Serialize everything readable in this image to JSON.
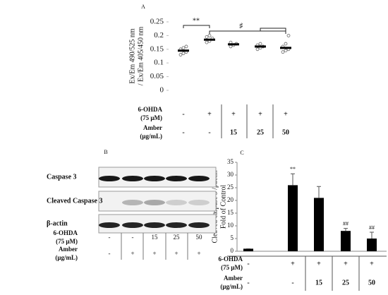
{
  "chart_data": [
    {
      "type": "dotplot",
      "panel": "A",
      "ylabel": [
        "Ex/Em 490/525 nm",
        "/ Ex/Em 405/450 nm"
      ],
      "ylim": [
        0,
        0.25
      ],
      "yticks": [
        0,
        0.05,
        0.1,
        0.15,
        0.2,
        0.25
      ],
      "means": [
        0.145,
        0.185,
        0.168,
        0.16,
        0.155
      ],
      "points": [
        [
          0.13,
          0.135,
          0.14,
          0.15,
          0.155,
          0.16
        ],
        [
          0.175,
          0.18,
          0.19,
          0.195,
          0.2
        ],
        [
          0.16,
          0.165,
          0.17,
          0.175
        ],
        [
          0.15,
          0.155,
          0.16,
          0.165,
          0.17
        ],
        [
          0.14,
          0.145,
          0.15,
          0.16,
          0.17,
          0.2
        ]
      ],
      "color": "#000000",
      "annotations": [
        "**",
        "♯"
      ],
      "rows": [
        {
          "label": [
            "6-OHDA",
            "(75 μM)"
          ],
          "cells": [
            "-",
            "+",
            "+",
            "+",
            "+"
          ]
        },
        {
          "label": [
            "Amber",
            "(μg/mL)"
          ],
          "cells": [
            "-",
            "-",
            "15",
            "25",
            "50"
          ]
        }
      ]
    },
    {
      "type": "bar",
      "panel": "C",
      "ylabel": [
        "Cleaved caspase 3 /βactin",
        "Fold of Control"
      ],
      "ylim": [
        0,
        35
      ],
      "yticks": [
        0,
        5,
        10,
        15,
        20,
        25,
        30,
        35
      ],
      "values": [
        1,
        26,
        21,
        8,
        5
      ],
      "errors": [
        0,
        4.5,
        4.5,
        1,
        2.5
      ],
      "value_labels": [
        null,
        "**",
        null,
        "##",
        "##"
      ],
      "color": "#000000",
      "rows": [
        {
          "label": [
            "6-OHDA",
            "(75 μM)"
          ],
          "cells": [
            "-",
            "+",
            "+",
            "+",
            "+"
          ]
        },
        {
          "label": [
            "Amber",
            "(μg/mL)"
          ],
          "cells": [
            "-",
            "-",
            "15",
            "25",
            "50"
          ]
        }
      ]
    }
  ],
  "blot": {
    "panel": "B",
    "bands": [
      "Caspase 3",
      "Cleaved Caspase 3",
      "β-actin"
    ],
    "rows": [
      {
        "label": [
          "6-OHDA",
          "(75 μM)"
        ],
        "cells": [
          "-",
          "-",
          "15",
          "25",
          "50"
        ]
      },
      {
        "label": [
          "Amber",
          "(μg/mL)"
        ],
        "cells": [
          "-",
          "+",
          "+",
          "+",
          "+"
        ]
      }
    ]
  }
}
